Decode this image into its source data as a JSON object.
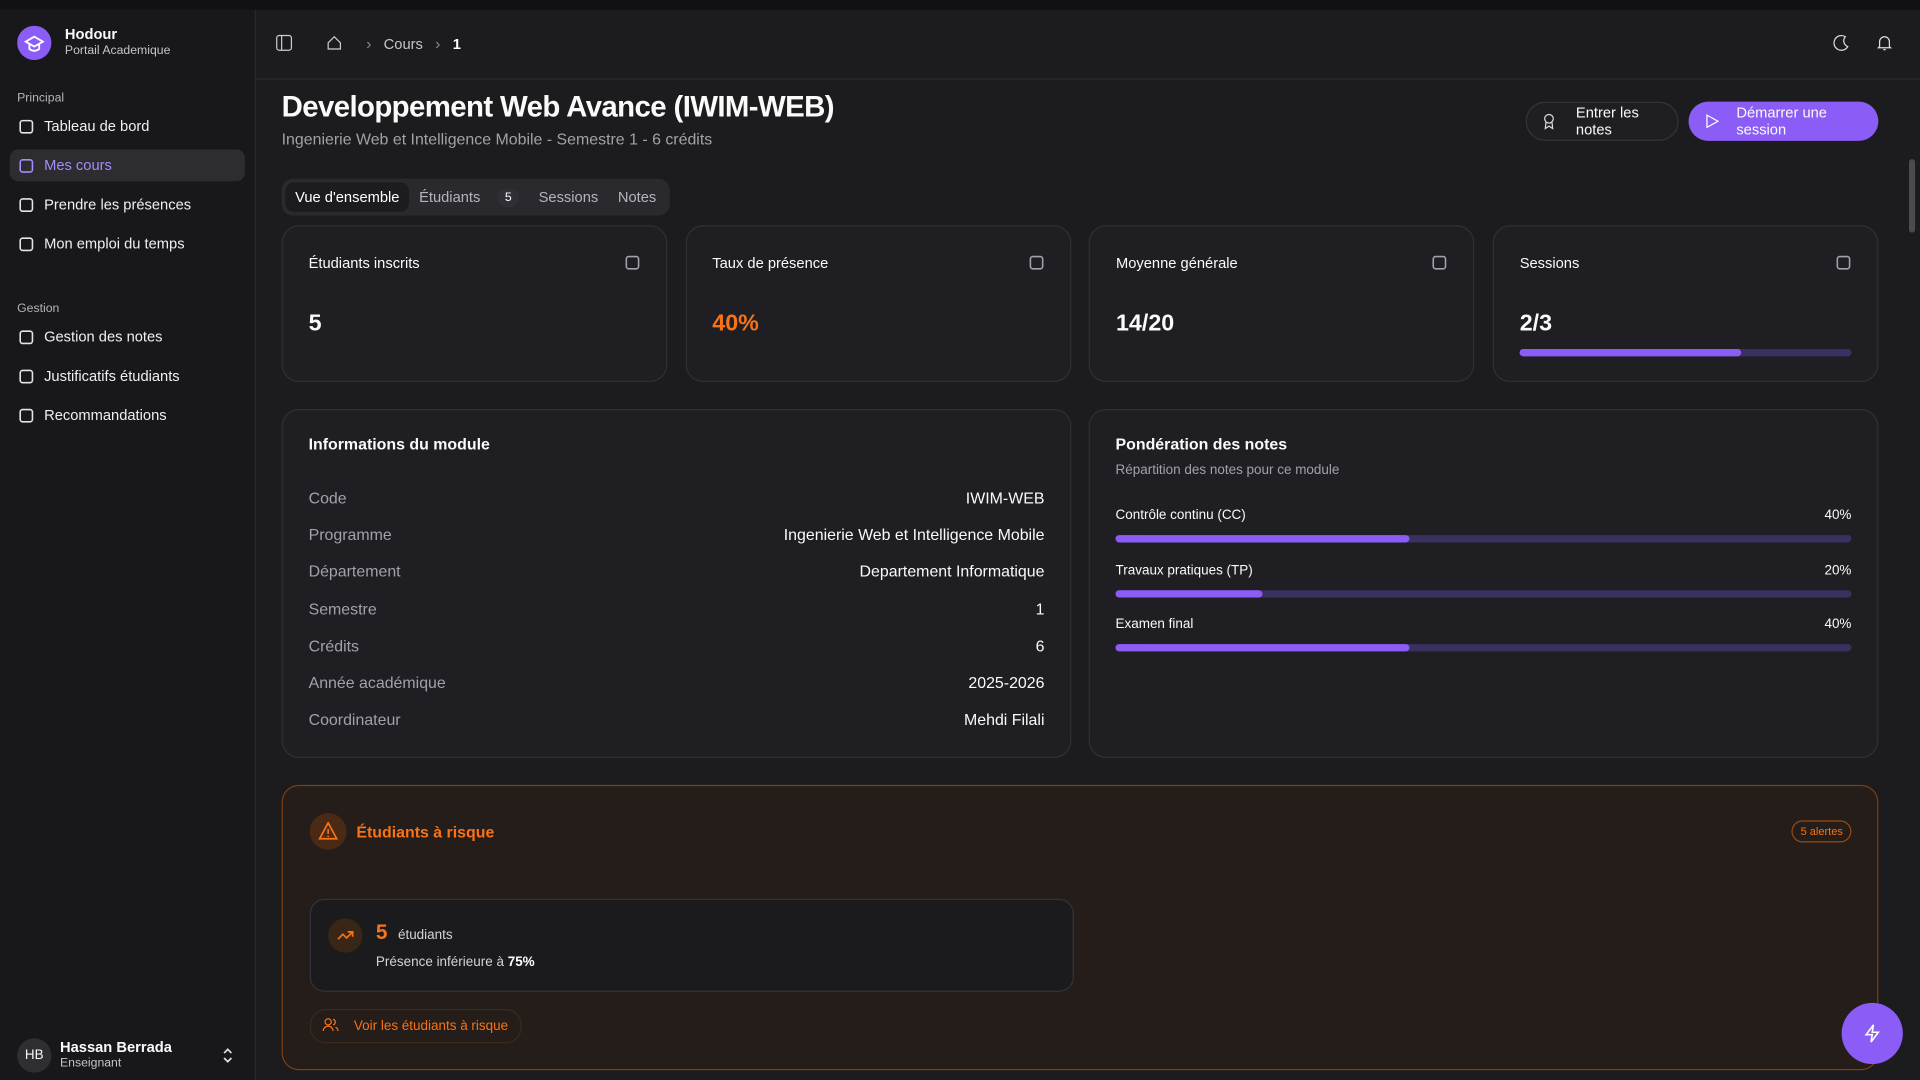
{
  "sidebar": {
    "brand": "Hodour",
    "subtitle": "Portail Academique",
    "sections": [
      {
        "title": "Principal",
        "items": [
          {
            "label": "Tableau de bord"
          },
          {
            "label": "Mes cours",
            "active": true
          },
          {
            "label": "Prendre les présences"
          },
          {
            "label": "Mon emploi du temps"
          }
        ]
      },
      {
        "title": "Gestion",
        "items": [
          {
            "label": "Gestion des notes"
          },
          {
            "label": "Justificatifs étudiants"
          },
          {
            "label": "Recommandations"
          }
        ]
      }
    ],
    "user": {
      "initials": "HB",
      "name": "Hassan Berrada",
      "role": "Enseignant"
    }
  },
  "breadcrumb": [
    "Cours",
    "1"
  ],
  "header": {
    "title": "Developpement Web Avance (IWIM-WEB)",
    "subtitle": "Ingenierie Web et Intelligence Mobile - Semestre 1 - 6 crédits",
    "buttons": [
      "Entrer les notes",
      "Démarrer une session"
    ]
  },
  "tabs": [
    {
      "label": "Vue d'ensemble",
      "active": true
    },
    {
      "label": "Étudiants",
      "badge": "5"
    },
    {
      "label": "Sessions"
    },
    {
      "label": "Notes"
    }
  ],
  "stats": [
    {
      "label": "Étudiants inscrits",
      "value": "5"
    },
    {
      "label": "Taux de présence",
      "value": "40%",
      "highlight": true
    },
    {
      "label": "Moyenne générale",
      "value": "14/20"
    },
    {
      "label": "Sessions",
      "value": "2/3",
      "done": 2,
      "total": 3
    }
  ],
  "module_info": {
    "title": "Informations du module",
    "rows": [
      [
        "Code",
        "IWIM-WEB"
      ],
      [
        "Programme",
        "Ingenierie Web et Intelligence Mobile"
      ],
      [
        "Département",
        "Departement Informatique"
      ],
      [
        "Semestre",
        "1"
      ],
      [
        "Crédits",
        "6"
      ],
      [
        "Année académique",
        "2025-2026"
      ],
      [
        "Coordinateur",
        "Mehdi Filali"
      ]
    ]
  },
  "weights": {
    "title": "Pondération des notes",
    "subtitle": "Répartition des notes pour ce module",
    "items": [
      {
        "name": "Contrôle continu (CC)",
        "value": 40,
        "label": "40%"
      },
      {
        "name": "Travaux pratiques (TP)",
        "value": 20,
        "label": "20%"
      },
      {
        "name": "Examen final",
        "value": 40,
        "label": "40%"
      }
    ]
  },
  "risk": {
    "title": "Étudiants à risque",
    "badge": "5 alertes",
    "count": "5",
    "count_label": "étudiants",
    "description": "Présence inférieure à",
    "threshold": "75%",
    "link": "Voir les étudiants à risque"
  }
}
